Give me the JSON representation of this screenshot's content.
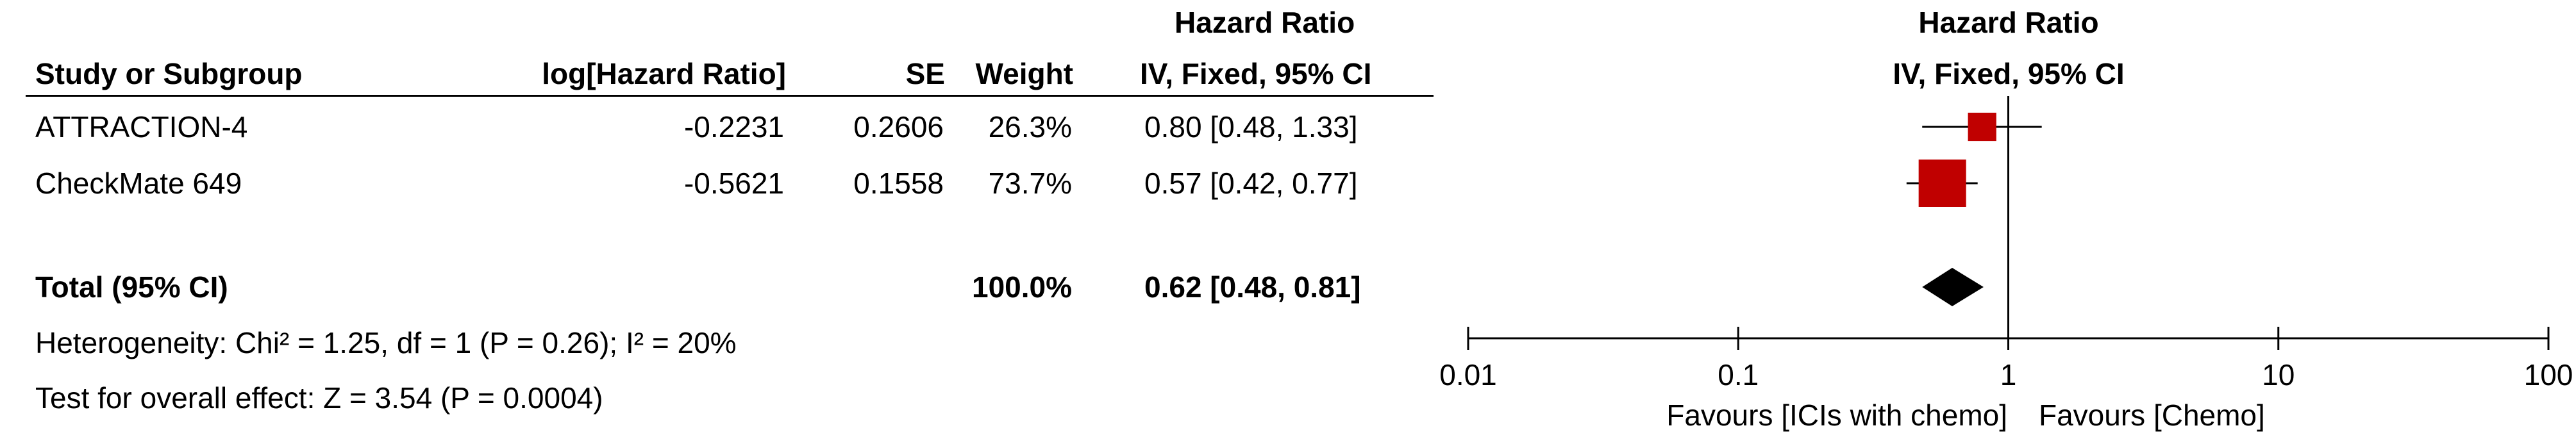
{
  "table": {
    "hazard_ratio_header": "Hazard Ratio",
    "columns": {
      "study": "Study or Subgroup",
      "log_hr": "log[Hazard Ratio]",
      "se": "SE",
      "weight": "Weight",
      "ci": "IV, Fixed, 95% CI"
    },
    "rows": [
      {
        "study": "ATTRACTION-4",
        "log_hr": "-0.2231",
        "se": "0.2606",
        "weight": "26.3%",
        "ci": "0.80 [0.48, 1.33]"
      },
      {
        "study": "CheckMate 649",
        "log_hr": "-0.5621",
        "se": "0.1558",
        "weight": "73.7%",
        "ci": "0.57 [0.42, 0.77]"
      }
    ],
    "total": {
      "study": "Total (95% CI)",
      "weight": "100.0%",
      "ci": "0.62 [0.48, 0.81]"
    },
    "heterogeneity": "Heterogeneity: Chi² = 1.25, df = 1 (P = 0.26); I² = 20%",
    "overall_effect": "Test for overall effect: Z = 3.54 (P = 0.0004)"
  },
  "plot": {
    "title": "Hazard Ratio",
    "subtitle": "IV, Fixed, 95% CI",
    "favours_left": "Favours [ICIs with chemo]",
    "favours_right": "Favours [Chemo]"
  },
  "chart_data": {
    "type": "scatter",
    "title": "Hazard Ratio",
    "subtitle": "IV, Fixed, 95% CI",
    "xscale": "log",
    "xlim": [
      0.01,
      100
    ],
    "xticks": [
      0.01,
      0.1,
      1,
      10,
      100
    ],
    "xtick_labels": [
      "0.01",
      "0.1",
      "1",
      "10",
      "100"
    ],
    "reference_line": 1,
    "studies": [
      {
        "name": "ATTRACTION-4",
        "hr": 0.8,
        "lower": 0.48,
        "upper": 1.33,
        "weight": 26.3
      },
      {
        "name": "CheckMate 649",
        "hr": 0.57,
        "lower": 0.42,
        "upper": 0.77,
        "weight": 73.7
      }
    ],
    "total": {
      "hr": 0.62,
      "lower": 0.48,
      "upper": 0.81
    },
    "colors": {
      "study_marker": "#c00000",
      "total_diamond": "#000000",
      "lines": "#000000"
    }
  }
}
